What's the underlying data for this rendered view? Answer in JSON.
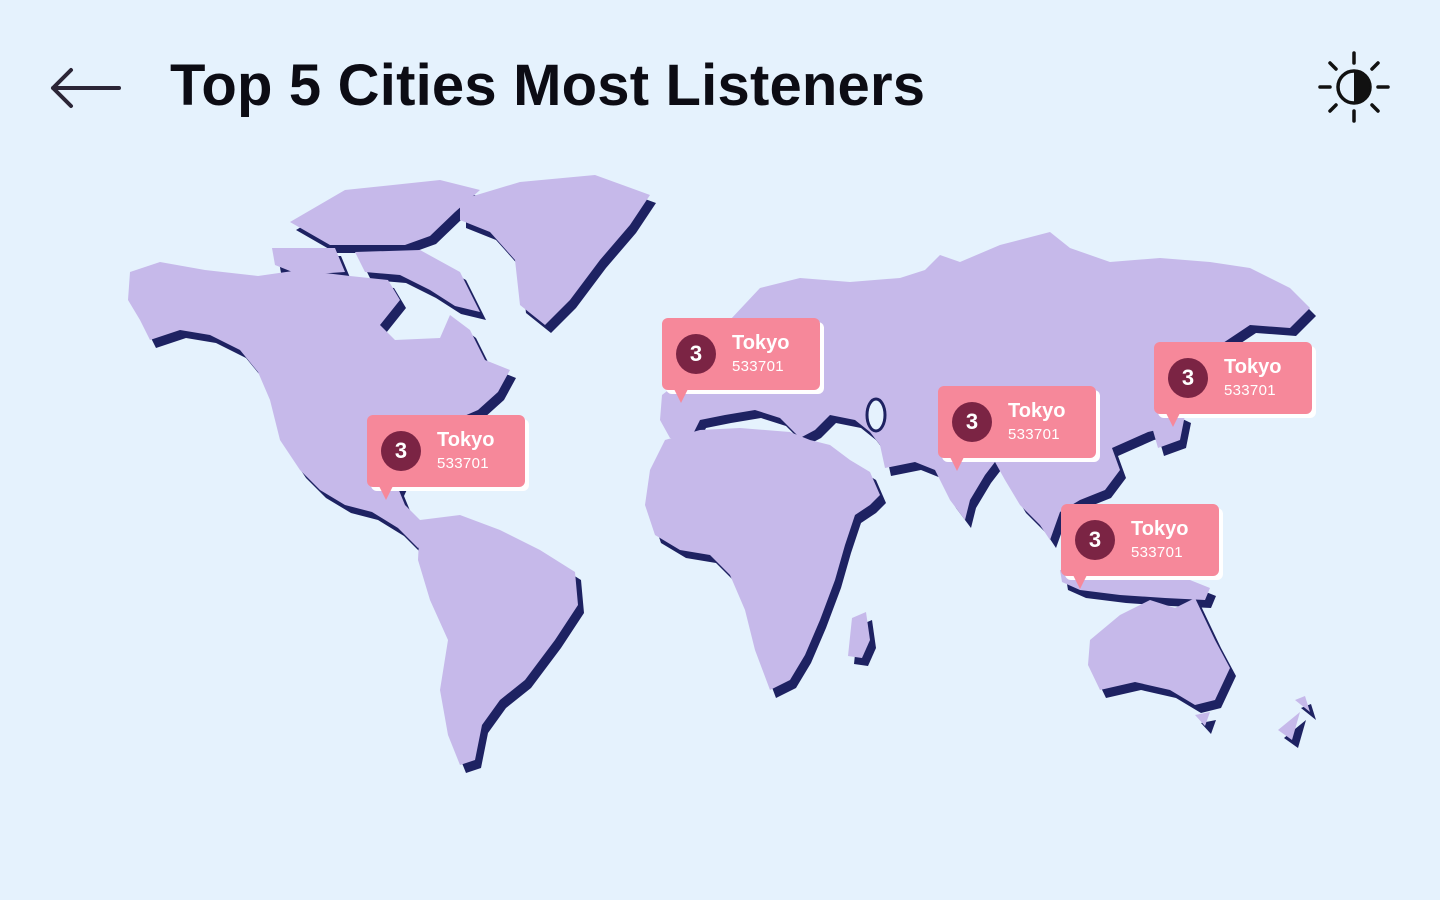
{
  "header": {
    "title": "Top 5 Cities Most Listeners",
    "back_icon": "arrow-left-icon",
    "theme_icon": "contrast-sun-icon"
  },
  "map": {
    "land_color": "#c6b9ea",
    "shadow_color": "#1e2262",
    "background_color": "#e5f2fd"
  },
  "markers": [
    {
      "rank": "3",
      "city": "Tokyo",
      "listeners": "533701"
    },
    {
      "rank": "3",
      "city": "Tokyo",
      "listeners": "533701"
    },
    {
      "rank": "3",
      "city": "Tokyo",
      "listeners": "533701"
    },
    {
      "rank": "3",
      "city": "Tokyo",
      "listeners": "533701"
    },
    {
      "rank": "3",
      "city": "Tokyo",
      "listeners": "533701"
    }
  ],
  "colors": {
    "marker_bg": "#f6889a",
    "rank_badge": "#7b2444",
    "title_text": "#0c0c14"
  }
}
